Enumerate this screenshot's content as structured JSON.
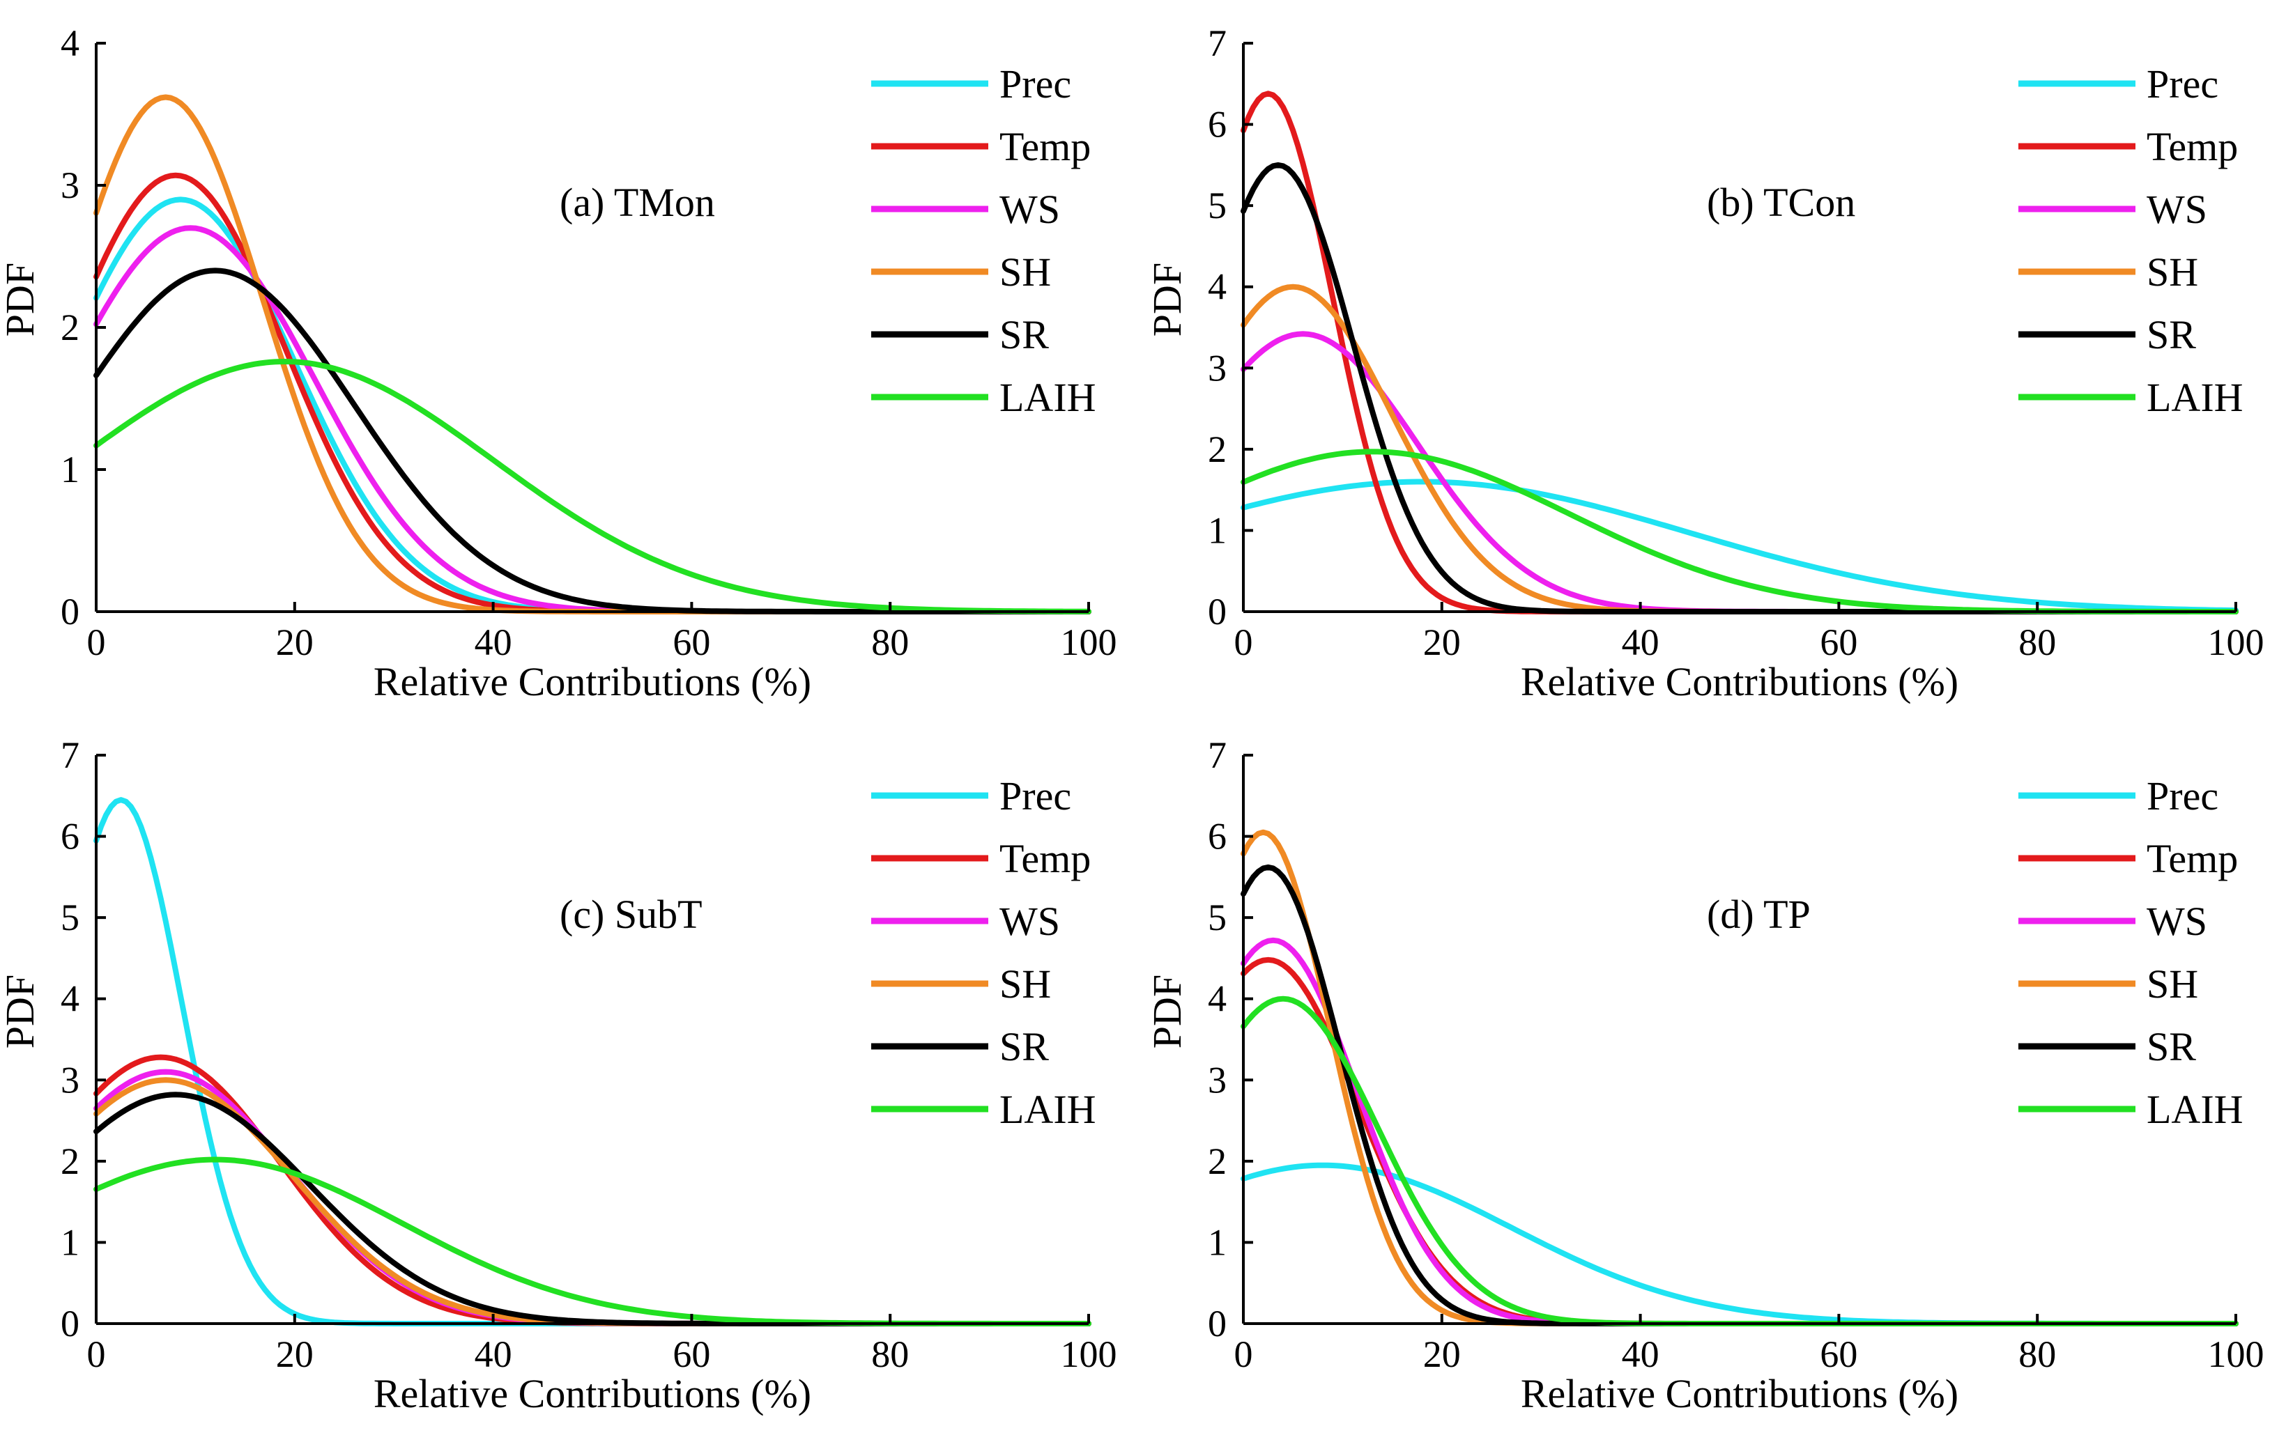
{
  "chart_data": [
    {
      "type": "line",
      "title": "(a) TMon",
      "xlabel": "Relative Contributions (%)",
      "ylabel": "PDF",
      "xlim": [
        0,
        100
      ],
      "ylim": [
        0,
        4
      ],
      "xticks": [
        0,
        20,
        40,
        60,
        80,
        100
      ],
      "yticks": [
        0,
        1,
        2,
        3,
        4
      ],
      "legend_position": "top-right",
      "series": [
        {
          "name": "Prec",
          "color": "#1fe3f2",
          "peak_x": 8.5,
          "peak_pdf": 2.9,
          "sigma": 11.5
        },
        {
          "name": "Temp",
          "color": "#e31a1c",
          "peak_x": 8,
          "peak_pdf": 3.07,
          "sigma": 11
        },
        {
          "name": "WS",
          "color": "#ee20ee",
          "peak_x": 9.5,
          "peak_pdf": 2.7,
          "sigma": 12.5
        },
        {
          "name": "SH",
          "color": "#f08a24",
          "peak_x": 7,
          "peak_pdf": 3.62,
          "sigma": 9.8
        },
        {
          "name": "SR",
          "color": "#000000",
          "peak_x": 12,
          "peak_pdf": 2.4,
          "sigma": 14
        },
        {
          "name": "LAIH",
          "color": "#22e022",
          "peak_x": 19,
          "peak_pdf": 1.76,
          "sigma": 21
        }
      ]
    },
    {
      "type": "line",
      "title": "(b) TCon",
      "xlabel": "Relative Contributions (%)",
      "ylabel": "PDF",
      "xlim": [
        0,
        100
      ],
      "ylim": [
        0,
        7
      ],
      "xticks": [
        0,
        20,
        40,
        60,
        80,
        100
      ],
      "yticks": [
        0,
        1,
        2,
        3,
        4,
        5,
        6,
        7
      ],
      "legend_position": "top-right",
      "series": [
        {
          "name": "Prec",
          "color": "#1fe3f2",
          "peak_x": 18,
          "peak_pdf": 1.6,
          "sigma": 27
        },
        {
          "name": "Temp",
          "color": "#e31a1c",
          "peak_x": 2.5,
          "peak_pdf": 6.38,
          "sigma": 6.5
        },
        {
          "name": "WS",
          "color": "#ee20ee",
          "peak_x": 6,
          "peak_pdf": 3.42,
          "sigma": 11.5
        },
        {
          "name": "SH",
          "color": "#f08a24",
          "peak_x": 5,
          "peak_pdf": 4.0,
          "sigma": 10
        },
        {
          "name": "SR",
          "color": "#000000",
          "peak_x": 3.5,
          "peak_pdf": 5.5,
          "sigma": 7.5
        },
        {
          "name": "LAIH",
          "color": "#22e022",
          "peak_x": 13,
          "peak_pdf": 1.97,
          "sigma": 20
        }
      ]
    },
    {
      "type": "line",
      "title": "(c) SubT",
      "xlabel": "Relative Contributions (%)",
      "ylabel": "PDF",
      "xlim": [
        0,
        100
      ],
      "ylim": [
        0,
        7
      ],
      "xticks": [
        0,
        20,
        40,
        60,
        80,
        100
      ],
      "yticks": [
        0,
        1,
        2,
        3,
        4,
        5,
        6,
        7
      ],
      "legend_position": "top-right",
      "series": [
        {
          "name": "Prec",
          "color": "#1fe3f2",
          "peak_x": 2.5,
          "peak_pdf": 6.45,
          "sigma": 6.2
        },
        {
          "name": "Temp",
          "color": "#e31a1c",
          "peak_x": 6.5,
          "peak_pdf": 3.28,
          "sigma": 12
        },
        {
          "name": "WS",
          "color": "#ee20ee",
          "peak_x": 7,
          "peak_pdf": 3.1,
          "sigma": 12.5
        },
        {
          "name": "SH",
          "color": "#f08a24",
          "peak_x": 7,
          "peak_pdf": 3.0,
          "sigma": 12.8
        },
        {
          "name": "SR",
          "color": "#000000",
          "peak_x": 8,
          "peak_pdf": 2.82,
          "sigma": 13.5
        },
        {
          "name": "LAIH",
          "color": "#22e022",
          "peak_x": 12,
          "peak_pdf": 2.02,
          "sigma": 19
        }
      ]
    },
    {
      "type": "line",
      "title": "(d) TP",
      "xlabel": "Relative Contributions (%)",
      "ylabel": "PDF",
      "xlim": [
        0,
        100
      ],
      "ylim": [
        0,
        7
      ],
      "xticks": [
        0,
        20,
        40,
        60,
        80,
        100
      ],
      "yticks": [
        0,
        1,
        2,
        3,
        4,
        5,
        6,
        7
      ],
      "legend_position": "top-right",
      "series": [
        {
          "name": "Prec",
          "color": "#1fe3f2",
          "peak_x": 8,
          "peak_pdf": 1.95,
          "sigma": 19
        },
        {
          "name": "Temp",
          "color": "#e31a1c",
          "peak_x": 2.5,
          "peak_pdf": 4.48,
          "sigma": 9
        },
        {
          "name": "WS",
          "color": "#ee20ee",
          "peak_x": 3,
          "peak_pdf": 4.72,
          "sigma": 8.5
        },
        {
          "name": "SH",
          "color": "#f08a24",
          "peak_x": 2,
          "peak_pdf": 6.05,
          "sigma": 6.7
        },
        {
          "name": "SR",
          "color": "#000000",
          "peak_x": 2.5,
          "peak_pdf": 5.62,
          "sigma": 7.2
        },
        {
          "name": "LAIH",
          "color": "#22e022",
          "peak_x": 4,
          "peak_pdf": 4.0,
          "sigma": 9.5
        }
      ]
    }
  ]
}
